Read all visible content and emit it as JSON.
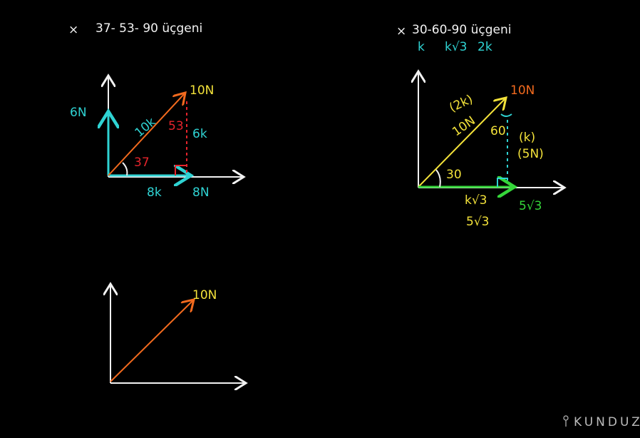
{
  "left_title": {
    "mark": "×",
    "text": "37- 53- 90  üçgeni"
  },
  "diagram_1": {
    "labels": [
      "6N",
      "10N",
      "10k",
      "53",
      "6k",
      "37",
      "8k",
      "8N"
    ]
  },
  "right_title": {
    "mark": "×",
    "text": "30-60-90  üçgeni",
    "sides": [
      "k",
      "k√3",
      "2k"
    ]
  },
  "diagram_2": {
    "labels": [
      "10N",
      "(2k)",
      "10N",
      "60",
      "(k)",
      "(5N)",
      "30",
      "k√3",
      "5√3",
      "5√3"
    ]
  },
  "diagram_3": {
    "labels": [
      "10N"
    ]
  },
  "logo": "KUNDUZ"
}
